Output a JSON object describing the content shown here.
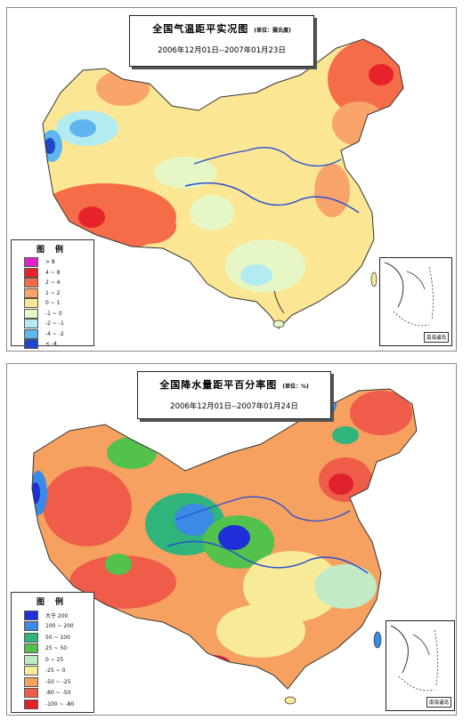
{
  "maps": {
    "temperature": {
      "title": "全国气温距平实况图",
      "unit": "(单位：摄氏度)",
      "date_range": "2006年12月01日--2007年01月23日",
      "legend": {
        "title": "图例",
        "items": [
          {
            "label": "> 8",
            "color": "#dd22cc"
          },
          {
            "label": "4 ~ 8",
            "color": "#e8222a"
          },
          {
            "label": "2 ~ 4",
            "color": "#f46c48"
          },
          {
            "label": "1 ~ 2",
            "color": "#f9a46a"
          },
          {
            "label": "0 ~ 1",
            "color": "#fbe693"
          },
          {
            "label": "-1 ~ 0",
            "color": "#e6f7c5"
          },
          {
            "label": "-2 ~ -1",
            "color": "#b3ecf0"
          },
          {
            "label": "-4 ~ -2",
            "color": "#5fb5ef"
          },
          {
            "label": "< -4",
            "color": "#1f46c6"
          }
        ]
      },
      "inset_label": "南海诸岛"
    },
    "precipitation": {
      "title": "全国降水量距平百分率图",
      "unit": "(单位：%)",
      "date_range": "2006年12月01日--2007年01月24日",
      "legend": {
        "title": "图例",
        "items": [
          {
            "label": "大于 200",
            "color": "#1d2fd6"
          },
          {
            "label": "100 ~ 200",
            "color": "#3a8ae6"
          },
          {
            "label": "50 ~ 100",
            "color": "#31b47c"
          },
          {
            "label": "25 ~ 50",
            "color": "#52c24c"
          },
          {
            "label": "0 ~ 25",
            "color": "#c3eac6"
          },
          {
            "label": "-25 ~ 0",
            "color": "#f7eb9a"
          },
          {
            "label": "-50 ~ -25",
            "color": "#f6a15f"
          },
          {
            "label": "-80 ~ -50",
            "color": "#ef5c4a"
          },
          {
            "label": "-100 ~ -80",
            "color": "#e0202a"
          }
        ]
      },
      "inset_label": "南海诸岛"
    }
  }
}
